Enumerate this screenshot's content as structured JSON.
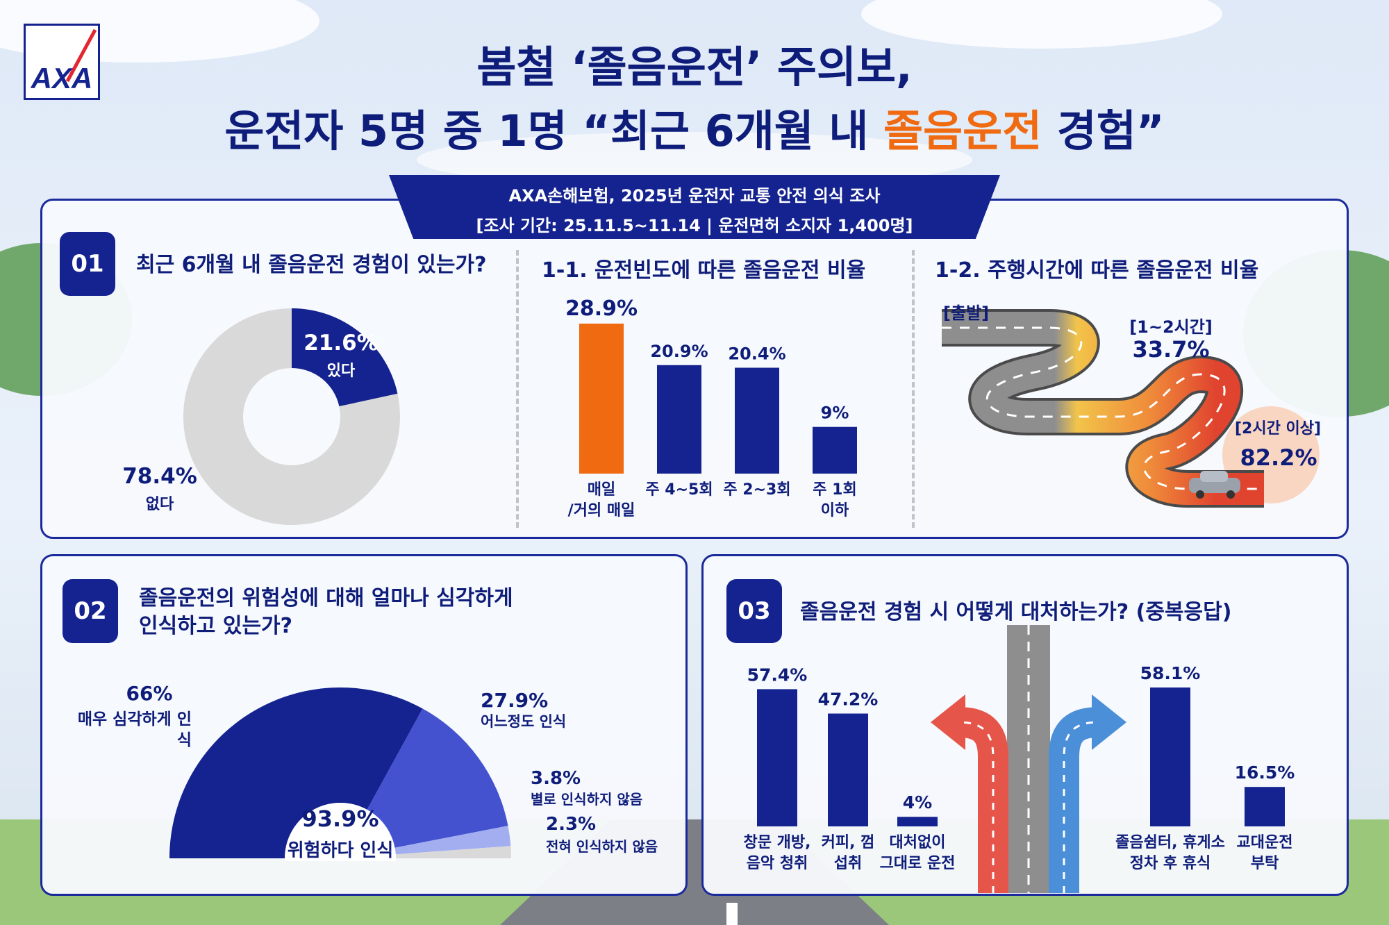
{
  "header": {
    "logo_text": "AXA",
    "title_line1": "봄철 ‘졸음운전’ 주의보,",
    "title_line2_pre": "운전자 5명 중 1명 “최근 6개월 내 ",
    "title_line2_highlight": "졸음운전",
    "title_line2_post": " 경험”",
    "survey_line1": "AXA손해보험, 2025년 운전자 교통 안전 의식 조사",
    "survey_line2": "[조사 기간: 25.11.5~11.14 | 운전면허 소지자 1,400명]"
  },
  "section1": {
    "badge": "01",
    "question": "최근 6개월 내 졸음운전 경험이 있는가?",
    "sub1_title": "1-1. 운전빈도에 따른 졸음운전 비율",
    "sub2_title": "1-2. 주행시간에 따른 졸음운전 비율"
  },
  "section2": {
    "badge": "02",
    "question_line1": "졸음운전의 위험성에 대해 얼마나 심각하게",
    "question_line2": "인식하고 있는가?"
  },
  "section3": {
    "badge": "03",
    "question": "졸음운전 경험 시 어떻게 대처하는가? (중복응답)"
  },
  "colors": {
    "navy": "#14238f",
    "orange": "#ef6a10",
    "grey": "#d9d9d9"
  },
  "chart_data": [
    {
      "type": "pie",
      "title": "최근 6개월 내 졸음운전 경험이 있는가?",
      "slices": [
        {
          "label": "있다",
          "value": 21.6,
          "display": "21.6%",
          "color": "#14238f"
        },
        {
          "label": "없다",
          "value": 78.4,
          "display": "78.4%",
          "color": "#d9d9d9"
        }
      ]
    },
    {
      "type": "bar",
      "title": "1-1. 운전빈도에 따른 졸음운전 비율",
      "categories": [
        "매일\n/거의 매일",
        "주 4~5회",
        "주 2~3회",
        "주 1회\n이하"
      ],
      "values": [
        28.9,
        20.9,
        20.4,
        9
      ],
      "labels": [
        "28.9%",
        "20.9%",
        "20.4%",
        "9%"
      ],
      "colors": [
        "#ef6a10",
        "#14238f",
        "#14238f",
        "#14238f"
      ]
    },
    {
      "type": "line",
      "title": "1-2. 주행시간에 따른 졸음운전 비율",
      "points": [
        {
          "label": "[출발]",
          "value": null,
          "display": ""
        },
        {
          "label": "[1~2시간]",
          "value": 33.7,
          "display": "33.7%"
        },
        {
          "label": "[2시간 이상]",
          "value": 82.2,
          "display": "82.2%"
        }
      ]
    },
    {
      "type": "pie",
      "title": "졸음운전의 위험성에 대해 얼마나 심각하게 인식하고 있는가?",
      "center_value": "93.9%",
      "center_label": "위험하다 인식",
      "slices": [
        {
          "label": "매우 심각하게 인식",
          "value": 66,
          "display": "66%",
          "color": "#14238f"
        },
        {
          "label": "어느정도 인식",
          "value": 27.9,
          "display": "27.9%",
          "color": "#4452cf"
        },
        {
          "label": "별로 인식하지 않음",
          "value": 3.8,
          "display": "3.8%",
          "color": "#a3aef0"
        },
        {
          "label": "전혀 인식하지 않음",
          "value": 2.3,
          "display": "2.3%",
          "color": "#d9d9d9"
        }
      ]
    },
    {
      "type": "bar",
      "title": "졸음운전 경험 시 어떻게 대처하는가? (중복응답)",
      "categories": [
        "창문 개방,\n음악 청취",
        "커피, 껌\n섭취",
        "대처없이\n그대로 운전",
        "졸음쉼터, 휴게소\n정차 후 휴식",
        "교대운전\n부탁"
      ],
      "values": [
        57.4,
        47.2,
        4,
        58.1,
        16.5
      ],
      "labels": [
        "57.4%",
        "47.2%",
        "4%",
        "58.1%",
        "16.5%"
      ]
    }
  ]
}
